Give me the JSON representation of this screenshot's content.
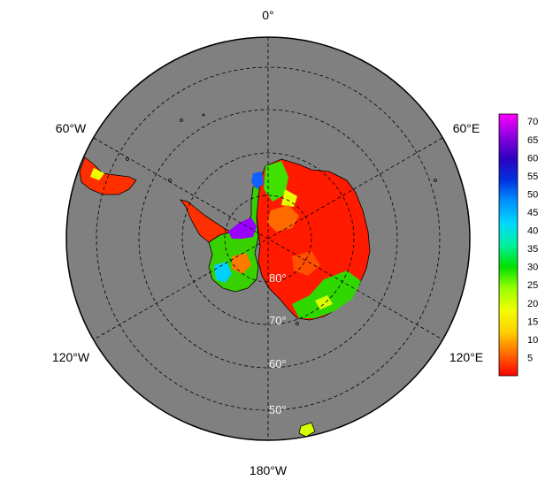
{
  "map": {
    "projection": "south-polar-stereographic",
    "ocean_color": "#808080",
    "grid_style": "dashed",
    "longitude_labels": {
      "top": "0°",
      "upper_left": "60°W",
      "upper_right": "60°E",
      "lower_left": "120°W",
      "lower_right": "120°E",
      "bottom": "180°W"
    },
    "latitude_labels": [
      "80°",
      "70°",
      "60°",
      "50°"
    ]
  },
  "colorbar": {
    "ticks": [
      "70",
      "65",
      "60",
      "55",
      "50",
      "45",
      "40",
      "35",
      "30",
      "25",
      "20",
      "15",
      "10",
      "5"
    ],
    "range": [
      0,
      72
    ],
    "colors": [
      "#ff0000",
      "#ff6a00",
      "#ffd000",
      "#f0ff00",
      "#9aff00",
      "#00e000",
      "#00f0a0",
      "#00d8ff",
      "#0090ff",
      "#0030e0",
      "#3000c0",
      "#9000e0",
      "#ff00ff"
    ]
  }
}
